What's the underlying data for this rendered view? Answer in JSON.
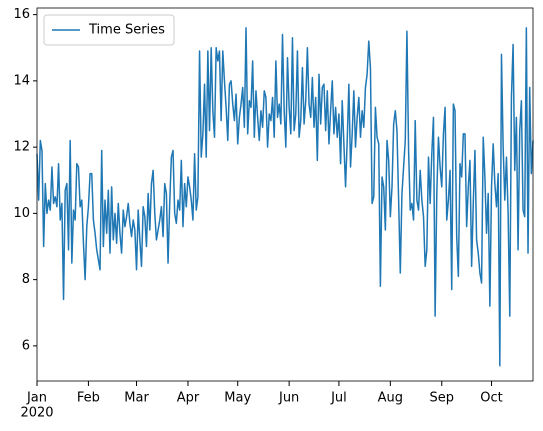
{
  "chart_data": {
    "type": "line",
    "series": [
      {
        "name": "Time Series",
        "color": "#1f77b4",
        "values": [
          11.8,
          10.4,
          12.2,
          11.9,
          9.0,
          10.9,
          10.0,
          10.4,
          10.1,
          11.4,
          10.3,
          10.5,
          10.2,
          11.5,
          9.8,
          10.3,
          7.4,
          10.7,
          10.9,
          8.9,
          12.2,
          8.5,
          10.1,
          9.8,
          11.5,
          11.4,
          10.2,
          10.4,
          9.1,
          8.0,
          9.6,
          10.2,
          11.2,
          11.2,
          9.8,
          9.4,
          8.9,
          8.6,
          8.3,
          11.9,
          9.0,
          10.4,
          9.4,
          10.7,
          8.8,
          10.8,
          9.2,
          10.0,
          9.1,
          10.3,
          9.4,
          8.8,
          10.1,
          9.6,
          9.9,
          10.3,
          9.7,
          9.3,
          9.8,
          9.5,
          8.3,
          10.1,
          9.2,
          8.4,
          10.2,
          9.9,
          9.0,
          10.6,
          9.5,
          10.9,
          11.3,
          10.0,
          9.2,
          9.5,
          9.8,
          10.2,
          9.3,
          10.9,
          10.6,
          8.5,
          10.3,
          11.7,
          11.9,
          10.0,
          9.7,
          10.4,
          10.1,
          11.6,
          9.6,
          10.9,
          10.2,
          11.1,
          10.8,
          10.4,
          9.8,
          11.8,
          10.1,
          10.5,
          14.9,
          11.7,
          12.4,
          13.9,
          11.7,
          14.9,
          12.5,
          15.0,
          13.1,
          12.3,
          15.0,
          14.6,
          14.9,
          12.8,
          14.9,
          14.0,
          13.2,
          12.2,
          13.9,
          14.0,
          13.3,
          12.8,
          13.6,
          12.1,
          12.9,
          13.3,
          13.8,
          12.6,
          15.6,
          12.4,
          13.4,
          13.2,
          14.6,
          12.3,
          13.7,
          12.9,
          12.2,
          13.1,
          12.6,
          13.7,
          13.5,
          12.0,
          13.0,
          12.8,
          13.5,
          12.3,
          14.6,
          12.9,
          13.3,
          12.7,
          15.4,
          13.1,
          12.0,
          14.7,
          13.2,
          12.4,
          15.3,
          12.5,
          13.0,
          14.9,
          12.3,
          12.8,
          14.4,
          12.7,
          13.4,
          15.0,
          13.3,
          12.9,
          14.1,
          12.6,
          13.5,
          11.6,
          14.2,
          12.7,
          13.8,
          13.9,
          12.5,
          13.7,
          12.1,
          13.1,
          14.0,
          12.4,
          13.2,
          12.3,
          13.0,
          11.5,
          13.4,
          12.1,
          10.8,
          12.2,
          13.9,
          11.4,
          12.4,
          13.7,
          12.0,
          12.9,
          13.5,
          12.3,
          13.1,
          12.6,
          13.8,
          14.2,
          15.2,
          14.4,
          10.3,
          10.5,
          13.2,
          12.3,
          12.1,
          7.8,
          11.1,
          10.8,
          9.5,
          12.2,
          11.6,
          9.9,
          10.8,
          12.7,
          13.1,
          12.5,
          10.4,
          8.2,
          10.6,
          11.4,
          12.2,
          15.5,
          11.9,
          10.1,
          10.3,
          9.8,
          12.8,
          10.4,
          10.1,
          11.3,
          10.4,
          9.9,
          8.4,
          8.9,
          11.7,
          10.3,
          11.8,
          12.9,
          6.9,
          10.6,
          12.3,
          11.4,
          10.8,
          12.4,
          13.2,
          9.8,
          10.4,
          11.3,
          7.7,
          13.3,
          13.1,
          9.3,
          8.1,
          11.5,
          11.1,
          12.4,
          12.4,
          9.6,
          10.8,
          11.6,
          8.4,
          10.3,
          11.9,
          9.2,
          8.8,
          8.2,
          7.9,
          12.3,
          11.1,
          9.4,
          10.6,
          7.2,
          10.8,
          12.1,
          10.9,
          10.2,
          11.2,
          5.4,
          14.8,
          12.0,
          10.4,
          11.7,
          10.0,
          6.9,
          13.5,
          15.1,
          11.3,
          12.9,
          8.9,
          12.5,
          13.4,
          10.1,
          9.9,
          15.6,
          8.8,
          13.8,
          11.2,
          12.2
        ]
      }
    ],
    "xlim": [
      0,
      299
    ],
    "xticks": [
      {
        "value": 0,
        "label": "Jan"
      },
      {
        "value": 31,
        "label": "Feb"
      },
      {
        "value": 60,
        "label": "Mar"
      },
      {
        "value": 91,
        "label": "Apr"
      },
      {
        "value": 121,
        "label": "May"
      },
      {
        "value": 152,
        "label": "Jun"
      },
      {
        "value": 182,
        "label": "Jul"
      },
      {
        "value": 213,
        "label": "Aug"
      },
      {
        "value": 244,
        "label": "Sep"
      },
      {
        "value": 274,
        "label": "Oct"
      }
    ],
    "x_year_label": "2020",
    "ylim": [
      4.94,
      16.2
    ],
    "yticks": [
      6,
      8,
      10,
      12,
      14,
      16
    ],
    "grid": false,
    "legend": "upper-left"
  }
}
